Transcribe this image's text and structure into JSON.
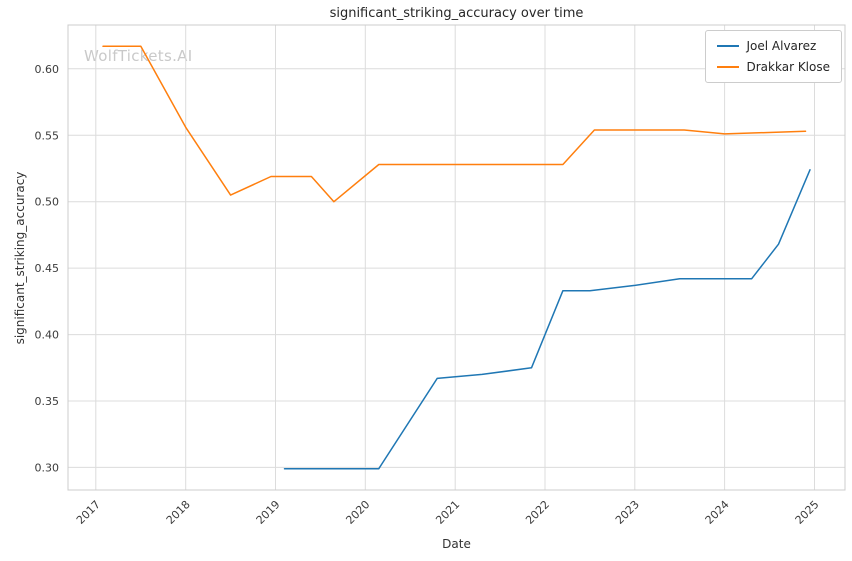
{
  "chart_data": {
    "type": "line",
    "title": "significant_striking_accuracy over time",
    "xlabel": "Date",
    "ylabel": "significant_striking_accuracy",
    "watermark": "WolfTickets.AI",
    "grid": true,
    "legend_position": "upper right",
    "xlim": [
      2016.69,
      2025.34
    ],
    "ylim": [
      0.283,
      0.633
    ],
    "x_ticks": [
      2017,
      2018,
      2019,
      2020,
      2021,
      2022,
      2023,
      2024,
      2025
    ],
    "y_ticks": [
      0.3,
      0.35,
      0.4,
      0.45,
      0.5,
      0.55,
      0.6
    ],
    "grid_color": "#dcdcdc",
    "spine_color": "#cccccc",
    "tick_text_color": "#3b3b3b",
    "series": [
      {
        "name": "Joel Alvarez",
        "color": "#1f77b4",
        "points": [
          [
            2019.1,
            0.299
          ],
          [
            2019.6,
            0.299
          ],
          [
            2020.15,
            0.299
          ],
          [
            2020.8,
            0.367
          ],
          [
            2021.3,
            0.37
          ],
          [
            2021.85,
            0.375
          ],
          [
            2022.2,
            0.433
          ],
          [
            2022.5,
            0.433
          ],
          [
            2023.0,
            0.437
          ],
          [
            2023.5,
            0.442
          ],
          [
            2024.0,
            0.442
          ],
          [
            2024.3,
            0.442
          ],
          [
            2024.6,
            0.468
          ],
          [
            2024.95,
            0.524
          ]
        ]
      },
      {
        "name": "Drakkar Klose",
        "color": "#ff7f0e",
        "points": [
          [
            2017.08,
            0.617
          ],
          [
            2017.5,
            0.617
          ],
          [
            2018.0,
            0.556
          ],
          [
            2018.5,
            0.505
          ],
          [
            2018.95,
            0.519
          ],
          [
            2019.4,
            0.519
          ],
          [
            2019.65,
            0.5
          ],
          [
            2020.15,
            0.528
          ],
          [
            2021.0,
            0.528
          ],
          [
            2022.2,
            0.528
          ],
          [
            2022.55,
            0.554
          ],
          [
            2023.3,
            0.554
          ],
          [
            2023.55,
            0.554
          ],
          [
            2024.0,
            0.551
          ],
          [
            2024.45,
            0.552
          ],
          [
            2024.9,
            0.553
          ]
        ]
      }
    ]
  }
}
